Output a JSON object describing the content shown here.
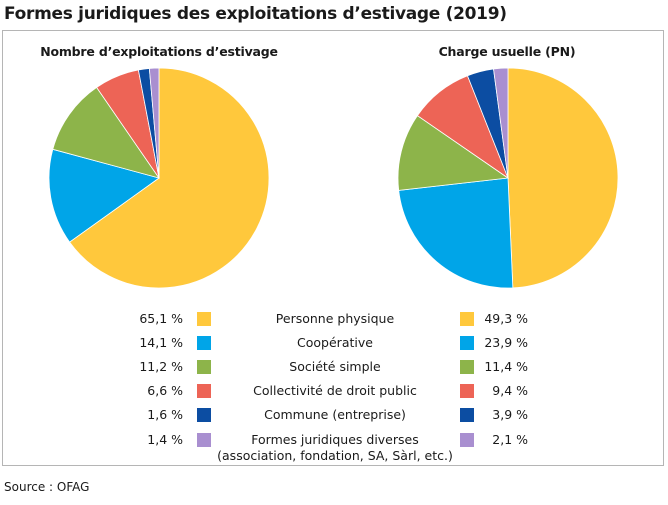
{
  "title": "Formes juridiques des exploitations d’estivage (2019)",
  "source": "Source : OFAG",
  "chart_data": [
    {
      "type": "pie",
      "title": "Nombre d’exploitations d’estivage",
      "categories": [
        "Personne physique",
        "Coopérative",
        "Société simple",
        "Collectivité de droit public",
        "Commune (entreprise)",
        "Formes juridiques diverses"
      ],
      "values": [
        65.1,
        14.1,
        11.2,
        6.6,
        1.6,
        1.4
      ],
      "labels": [
        "65,1 %",
        "14,1 %",
        "11,2 %",
        "6,6 %",
        "1,6 %",
        "1,4 %"
      ]
    },
    {
      "type": "pie",
      "title": "Charge usuelle (PN)",
      "categories": [
        "Personne physique",
        "Coopérative",
        "Société simple",
        "Collectivité de droit public",
        "Commune (entreprise)",
        "Formes juridiques diverses"
      ],
      "values": [
        49.3,
        23.9,
        11.4,
        9.4,
        3.9,
        2.1
      ],
      "labels": [
        "49,3 %",
        "23,9 %",
        "11,4 %",
        "9,4 %",
        "3,9 %",
        "2,1 %"
      ]
    }
  ],
  "legend": [
    {
      "label": "Personne physique",
      "label2": "",
      "color": "#ffc83c"
    },
    {
      "label": "Coopérative",
      "label2": "",
      "color": "#00a5e8"
    },
    {
      "label": "Société simple",
      "label2": "",
      "color": "#8db44a"
    },
    {
      "label": "Collectivité de droit public",
      "label2": "",
      "color": "#ed6456"
    },
    {
      "label": "Commune (entreprise)",
      "label2": "",
      "color": "#0c4da2"
    },
    {
      "label": "Formes juridiques diverses",
      "label2": "(association, fondation, SA, Sàrl, etc.)",
      "color": "#a98fd0"
    }
  ]
}
